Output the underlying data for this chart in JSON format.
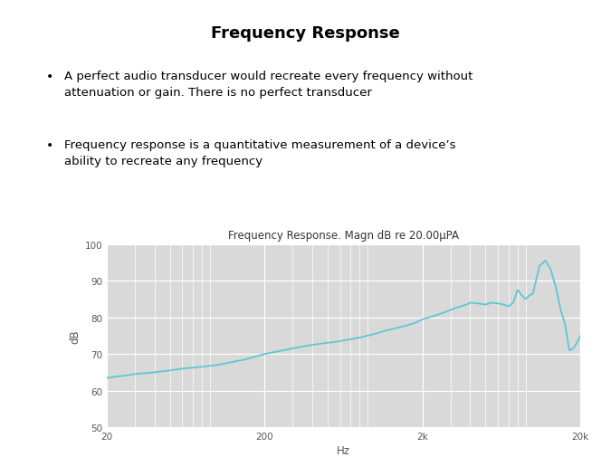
{
  "title": "Frequency Response",
  "bullet1_line1": "A perfect audio transducer would recreate every frequency without",
  "bullet1_line2": "attenuation or gain. There is no perfect transducer",
  "bullet2_line1": "Frequency response is a quantitative measurement of a device’s",
  "bullet2_line2": "ability to recreate any frequency",
  "chart_title": "Frequency Response. Magn dB re 20.00μPA",
  "xlabel": "Hz",
  "ylabel": "dB",
  "ylim": [
    50,
    100
  ],
  "yticks": [
    50,
    60,
    70,
    80,
    90,
    100
  ],
  "xlim_log": [
    20,
    20000
  ],
  "xtick_labels": [
    "20",
    "200",
    "2k",
    "20k"
  ],
  "xtick_positions": [
    20,
    200,
    2000,
    20000
  ],
  "line_color": "#5bc8d5",
  "plot_bg": "#d9d9d9",
  "figure_bg": "#ffffff",
  "grid_color": "#ffffff",
  "title_color": "#000000",
  "text_color": "#000000",
  "freq_points": [
    20,
    25,
    30,
    40,
    50,
    60,
    80,
    100,
    150,
    200,
    300,
    400,
    600,
    800,
    1000,
    1200,
    1500,
    1800,
    2000,
    2200,
    2400,
    2600,
    2800,
    3000,
    3200,
    3500,
    3800,
    4000,
    4500,
    5000,
    5500,
    6000,
    6500,
    7000,
    7500,
    8000,
    8500,
    9000,
    9500,
    10000,
    11000,
    12000,
    13000,
    14000,
    15000,
    16000,
    17000,
    18000,
    19000,
    20000
  ],
  "db_points": [
    63.5,
    64,
    64.5,
    65,
    65.5,
    66,
    66.5,
    67,
    68.5,
    70,
    71.5,
    72.5,
    73.5,
    74.5,
    75.5,
    76.5,
    77.5,
    78.5,
    79.5,
    80,
    80.5,
    81,
    81.5,
    82,
    82.5,
    83,
    83.5,
    84,
    83.8,
    83.5,
    84,
    83.8,
    83.5,
    83,
    84,
    87.5,
    86,
    85,
    86,
    86.5,
    94,
    95.5,
    93,
    88,
    82,
    78,
    71,
    71.5,
    73,
    75
  ]
}
